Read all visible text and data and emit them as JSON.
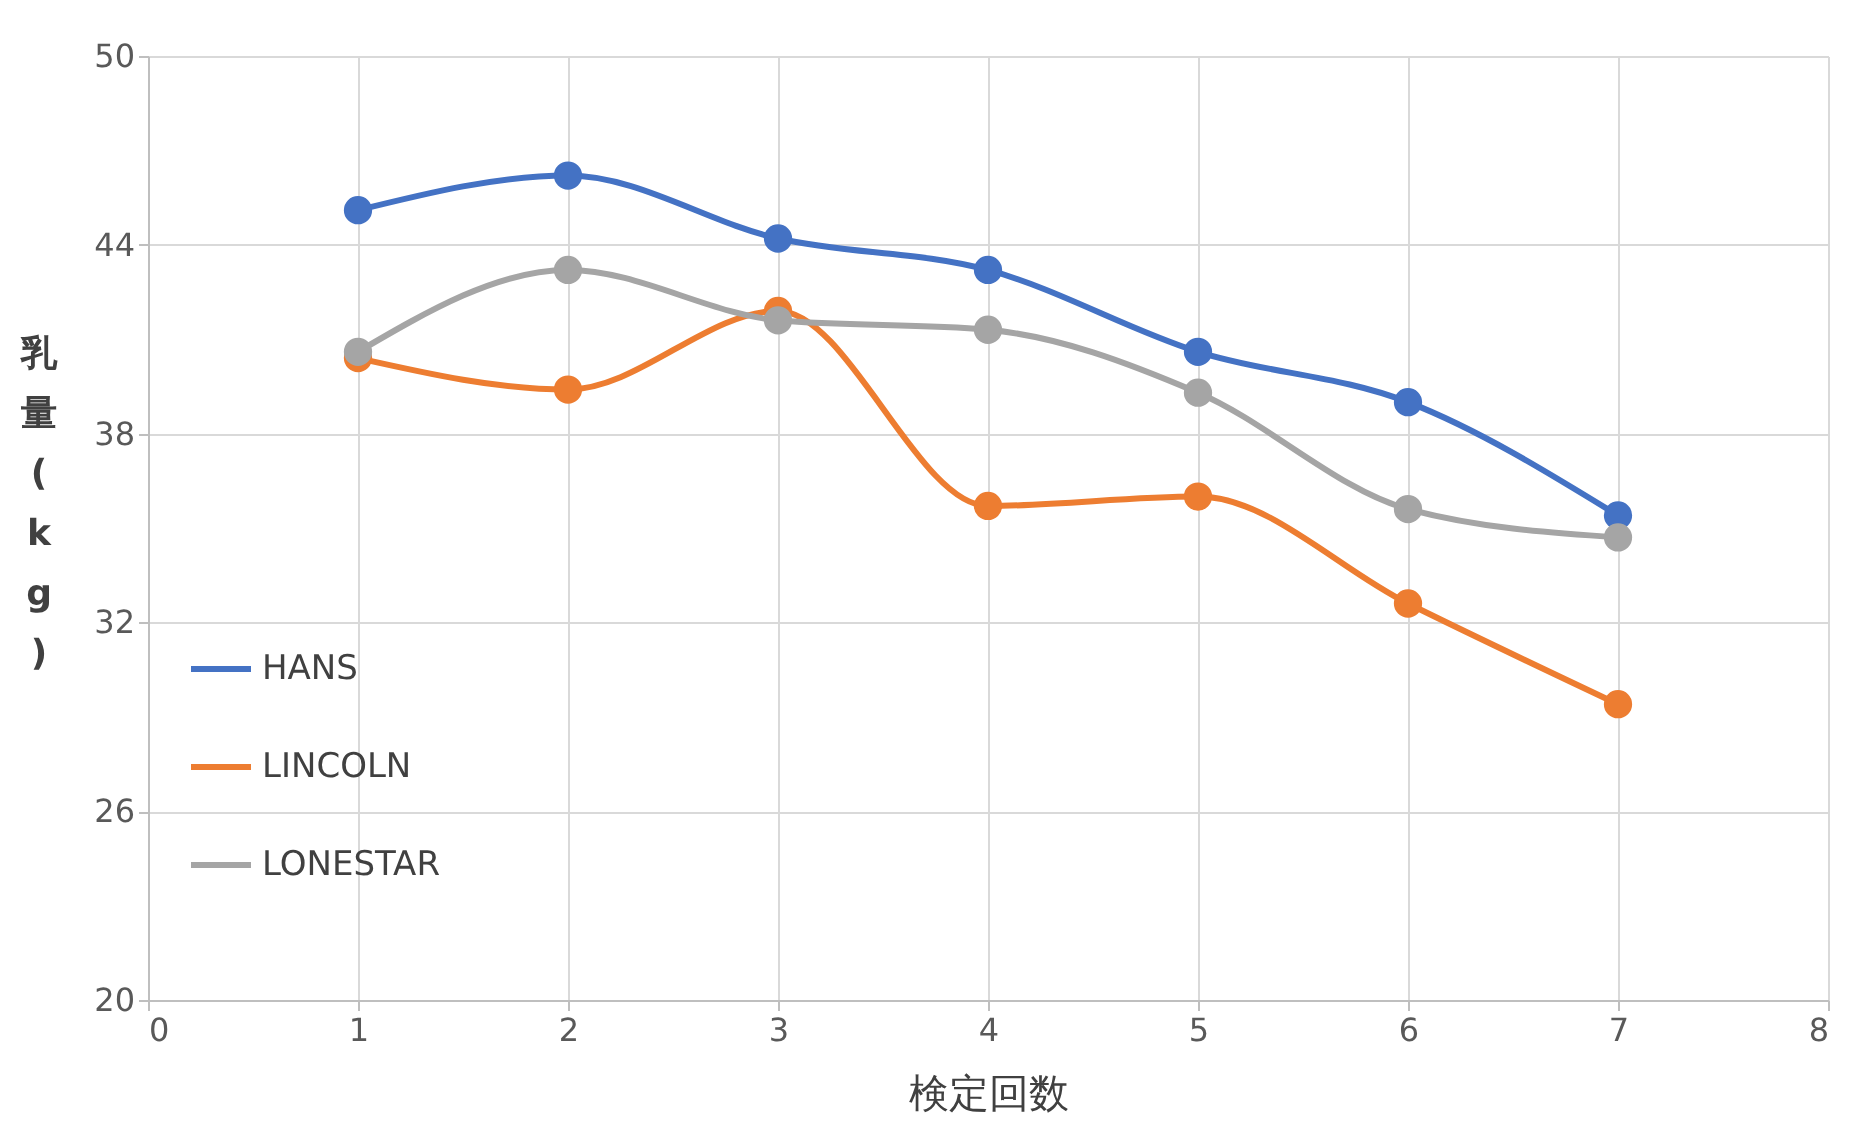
{
  "chart_data": {
    "type": "line",
    "xlabel": "検定回数",
    "ylabel": "乳量(kg)",
    "x": [
      1,
      2,
      3,
      4,
      5,
      6,
      7
    ],
    "xlim": [
      0,
      8
    ],
    "xticks": [
      0,
      1,
      2,
      3,
      4,
      5,
      6,
      7,
      8
    ],
    "ylim": [
      20,
      50
    ],
    "yticks": [
      20,
      26,
      32,
      38,
      44,
      50
    ],
    "grid": true,
    "legend": "left",
    "marker": "circle",
    "line_style": "solid",
    "series": [
      {
        "name": "HANS",
        "color": "#4472c4",
        "values": [
          45.1,
          46.2,
          44.2,
          43.2,
          40.6,
          39.0,
          35.4
        ]
      },
      {
        "name": "LINCOLN",
        "color": "#ed7d31",
        "values": [
          40.4,
          39.4,
          41.9,
          35.7,
          36.0,
          32.6,
          29.4
        ]
      },
      {
        "name": "LONESTAR",
        "color": "#a5a5a5",
        "values": [
          40.6,
          43.2,
          41.6,
          41.3,
          39.3,
          35.6,
          34.7
        ]
      }
    ]
  }
}
